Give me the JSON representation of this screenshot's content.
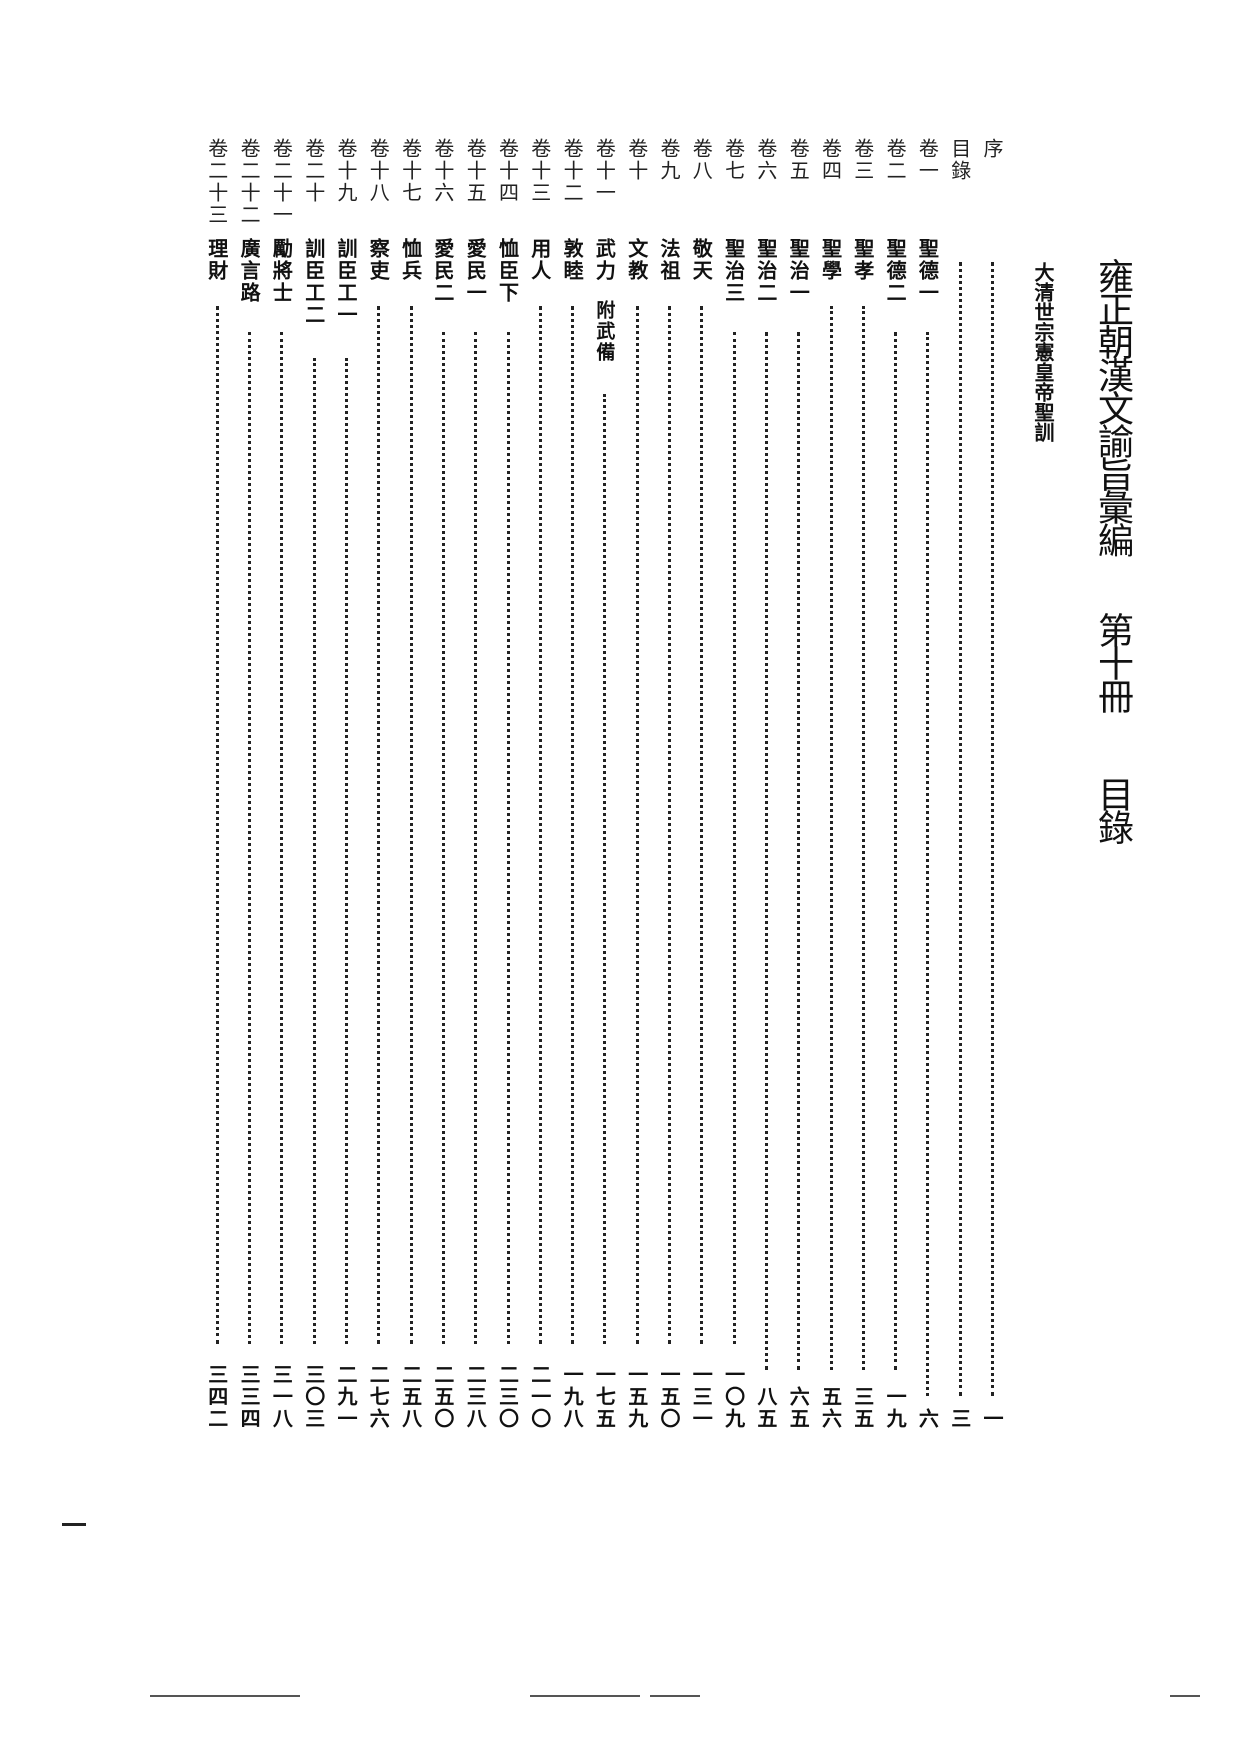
{
  "header": {
    "title": "雍正朝漢文諭旨彙編",
    "volume": "第十冊",
    "section": "目錄",
    "subtitle": "大清世宗憲皇帝聖訓"
  },
  "toc": [
    {
      "vol": "序",
      "topic": "",
      "page": "一"
    },
    {
      "vol": "目錄",
      "topic": "",
      "page": "三"
    },
    {
      "vol": "卷一",
      "topic": "聖德一",
      "page": "六"
    },
    {
      "vol": "卷二",
      "topic": "聖德二",
      "page": "一九"
    },
    {
      "vol": "卷三",
      "topic": "聖孝",
      "page": "三五"
    },
    {
      "vol": "卷四",
      "topic": "聖學",
      "page": "五六"
    },
    {
      "vol": "卷五",
      "topic": "聖治一",
      "page": "六五"
    },
    {
      "vol": "卷六",
      "topic": "聖治二",
      "page": "八五"
    },
    {
      "vol": "卷七",
      "topic": "聖治三",
      "page": "一〇九"
    },
    {
      "vol": "卷八",
      "topic": "敬天",
      "page": "一三一"
    },
    {
      "vol": "卷九",
      "topic": "法祖",
      "page": "一五〇"
    },
    {
      "vol": "卷十",
      "topic": "文教",
      "page": "一五九"
    },
    {
      "vol": "卷十一",
      "topic": "武力",
      "note": "附武備",
      "page": "一七五"
    },
    {
      "vol": "卷十二",
      "topic": "敦睦",
      "page": "一九八"
    },
    {
      "vol": "卷十三",
      "topic": "用人",
      "page": "二一〇"
    },
    {
      "vol": "卷十四",
      "topic": "恤臣下",
      "page": "二三〇"
    },
    {
      "vol": "卷十五",
      "topic": "愛民一",
      "page": "二三八"
    },
    {
      "vol": "卷十六",
      "topic": "愛民二",
      "page": "二五〇"
    },
    {
      "vol": "卷十七",
      "topic": "恤兵",
      "page": "二五八"
    },
    {
      "vol": "卷十八",
      "topic": "察吏",
      "page": "二七六"
    },
    {
      "vol": "卷十九",
      "topic": "訓臣工一",
      "page": "二九一"
    },
    {
      "vol": "卷二十",
      "topic": "訓臣工二",
      "page": "三〇三"
    },
    {
      "vol": "卷二十一",
      "topic": "勵將士",
      "page": "三一八"
    },
    {
      "vol": "卷二十二",
      "topic": "廣言路",
      "page": "三三四"
    },
    {
      "vol": "卷二十三",
      "topic": "理財",
      "page": "三四二"
    }
  ]
}
